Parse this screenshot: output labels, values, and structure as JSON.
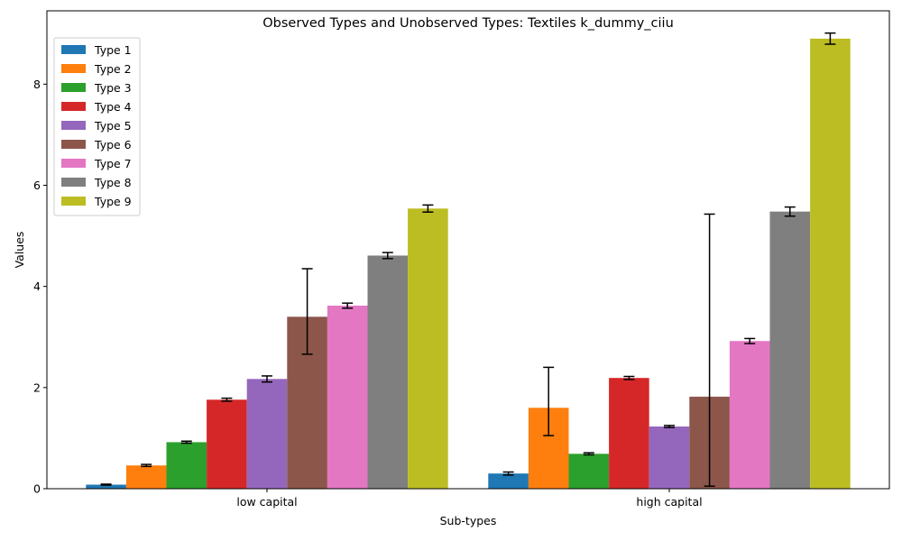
{
  "chart_data": {
    "type": "bar",
    "title": "Observed Types and Unobserved Types: Textiles k_dummy_ciiu",
    "xlabel": "Sub-types",
    "ylabel": "Values",
    "ylim": [
      0,
      9.45
    ],
    "yticks": [
      "0",
      "2",
      "4",
      "6",
      "8"
    ],
    "categories": [
      "low capital",
      "high capital"
    ],
    "legend_position": "upper-left",
    "grid": false,
    "series": [
      {
        "name": "Type 1",
        "color": "#1f77b4",
        "values": [
          0.08,
          0.3
        ],
        "errors_low": [
          0.07,
          0.27
        ],
        "errors_high": [
          0.09,
          0.33
        ]
      },
      {
        "name": "Type 2",
        "color": "#ff7f0e",
        "values": [
          0.46,
          1.6
        ],
        "errors_low": [
          0.44,
          1.05
        ],
        "errors_high": [
          0.48,
          2.4
        ]
      },
      {
        "name": "Type 3",
        "color": "#2ca02c",
        "values": [
          0.92,
          0.69
        ],
        "errors_low": [
          0.9,
          0.67
        ],
        "errors_high": [
          0.94,
          0.71
        ]
      },
      {
        "name": "Type 4",
        "color": "#d62728",
        "values": [
          1.76,
          2.19
        ],
        "errors_low": [
          1.73,
          2.16
        ],
        "errors_high": [
          1.79,
          2.22
        ]
      },
      {
        "name": "Type 5",
        "color": "#9467bd",
        "values": [
          2.17,
          1.23
        ],
        "errors_low": [
          2.11,
          1.21
        ],
        "errors_high": [
          2.23,
          1.25
        ]
      },
      {
        "name": "Type 6",
        "color": "#8c564b",
        "values": [
          3.4,
          1.82
        ],
        "errors_low": [
          2.66,
          0.05
        ],
        "errors_high": [
          4.35,
          5.43
        ]
      },
      {
        "name": "Type 7",
        "color": "#e377c2",
        "values": [
          3.62,
          2.92
        ],
        "errors_low": [
          3.57,
          2.87
        ],
        "errors_high": [
          3.67,
          2.97
        ]
      },
      {
        "name": "Type 8",
        "color": "#7f7f7f",
        "values": [
          4.61,
          5.48
        ],
        "errors_low": [
          4.55,
          5.39
        ],
        "errors_high": [
          4.67,
          5.57
        ]
      },
      {
        "name": "Type 9",
        "color": "#bcbd22",
        "values": [
          5.54,
          8.9
        ],
        "errors_low": [
          5.47,
          8.79
        ],
        "errors_high": [
          5.61,
          9.01
        ]
      }
    ]
  }
}
